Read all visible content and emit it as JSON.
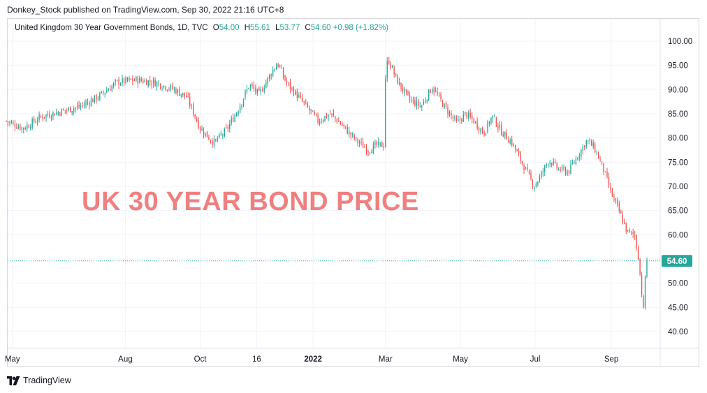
{
  "header": {
    "publisher": "Donkey_Stock published on TradingView.com, Sep 30, 2022 21:16 UTC+8"
  },
  "legend": {
    "symbol": "United Kingdom 30 Year Government Bonds, 1D, TVC",
    "o_label": "O",
    "o_value": "54.00",
    "h_label": "H",
    "h_value": "55.61",
    "l_label": "L",
    "l_value": "53.77",
    "c_label": "C",
    "c_value": "54.60",
    "change": "+0.98 (+1.82%)"
  },
  "watermark": "UK 30 YEAR BOND PRICE",
  "footer": {
    "brand": "TradingView"
  },
  "colors": {
    "up": "#26a69a",
    "down": "#ef5350",
    "grid": "#f0f3fa",
    "last_price_bg": "#26a69a"
  },
  "chart_data": {
    "type": "candlestick",
    "ylim": [
      36,
      104
    ],
    "yticks": [
      "100.00",
      "95.00",
      "90.00",
      "85.00",
      "80.00",
      "75.00",
      "70.00",
      "65.00",
      "60.00",
      "55.00",
      "50.00",
      "45.00",
      "40.00"
    ],
    "ytick_values": [
      100,
      95,
      90,
      85,
      80,
      75,
      70,
      65,
      60,
      55,
      50,
      45,
      40
    ],
    "xticks": [
      {
        "label": "May",
        "bold": false,
        "date": "2021-05-01"
      },
      {
        "label": "Aug",
        "bold": false,
        "date": "2021-08-01"
      },
      {
        "label": "Oct",
        "bold": false,
        "date": "2021-10-01"
      },
      {
        "label": "16",
        "bold": false,
        "date": "2021-11-16"
      },
      {
        "label": "2022",
        "bold": true,
        "date": "2022-01-01"
      },
      {
        "label": "Mar",
        "bold": false,
        "date": "2022-03-01"
      },
      {
        "label": "May",
        "bold": false,
        "date": "2022-05-01"
      },
      {
        "label": "Jul",
        "bold": false,
        "date": "2022-07-01"
      },
      {
        "label": "Sep",
        "bold": false,
        "date": "2022-09-01"
      }
    ],
    "last_price": 54.6,
    "last_price_label": "54.60",
    "price_path": [
      [
        "2021-04-26",
        83.5
      ],
      [
        "2021-05-10",
        82.0
      ],
      [
        "2021-05-25",
        84.5
      ],
      [
        "2021-06-10",
        85.5
      ],
      [
        "2021-06-25",
        86.5
      ],
      [
        "2021-07-10",
        88.5
      ],
      [
        "2021-07-25",
        91.5
      ],
      [
        "2021-08-10",
        92.0
      ],
      [
        "2021-08-25",
        91.5
      ],
      [
        "2021-09-10",
        90.0
      ],
      [
        "2021-09-20",
        88.5
      ],
      [
        "2021-10-01",
        82.0
      ],
      [
        "2021-10-12",
        79.0
      ],
      [
        "2021-10-22",
        81.5
      ],
      [
        "2021-11-01",
        86.0
      ],
      [
        "2021-11-10",
        91.0
      ],
      [
        "2021-11-18",
        89.0
      ],
      [
        "2021-11-28",
        93.5
      ],
      [
        "2021-12-03",
        95.5
      ],
      [
        "2021-12-10",
        91.5
      ],
      [
        "2021-12-20",
        88.5
      ],
      [
        "2022-01-05",
        83.5
      ],
      [
        "2022-01-15",
        85.0
      ],
      [
        "2022-01-25",
        82.5
      ],
      [
        "2022-02-05",
        79.5
      ],
      [
        "2022-02-15",
        77.5
      ],
      [
        "2022-02-22",
        78.5
      ],
      [
        "2022-02-28",
        78.5
      ],
      [
        "2022-03-01",
        93.0
      ],
      [
        "2022-03-03",
        96.5
      ],
      [
        "2022-03-10",
        92.0
      ],
      [
        "2022-03-20",
        88.0
      ],
      [
        "2022-03-30",
        86.5
      ],
      [
        "2022-04-08",
        90.5
      ],
      [
        "2022-04-18",
        86.5
      ],
      [
        "2022-04-28",
        83.0
      ],
      [
        "2022-05-05",
        85.0
      ],
      [
        "2022-05-12",
        83.5
      ],
      [
        "2022-05-20",
        81.0
      ],
      [
        "2022-05-27",
        84.5
      ],
      [
        "2022-06-03",
        81.5
      ],
      [
        "2022-06-12",
        79.0
      ],
      [
        "2022-06-20",
        75.0
      ],
      [
        "2022-06-30",
        70.0
      ],
      [
        "2022-07-05",
        72.0
      ],
      [
        "2022-07-12",
        75.5
      ],
      [
        "2022-07-20",
        73.5
      ],
      [
        "2022-07-28",
        73.0
      ],
      [
        "2022-08-05",
        76.5
      ],
      [
        "2022-08-12",
        79.5
      ],
      [
        "2022-08-18",
        78.0
      ],
      [
        "2022-08-25",
        74.0
      ],
      [
        "2022-09-01",
        68.5
      ],
      [
        "2022-09-08",
        64.5
      ],
      [
        "2022-09-14",
        60.5
      ],
      [
        "2022-09-20",
        60.0
      ],
      [
        "2022-09-23",
        55.5
      ],
      [
        "2022-09-26",
        47.5
      ],
      [
        "2022-09-27",
        43.0
      ],
      [
        "2022-09-28",
        50.0
      ],
      [
        "2022-09-30",
        54.6
      ]
    ]
  }
}
